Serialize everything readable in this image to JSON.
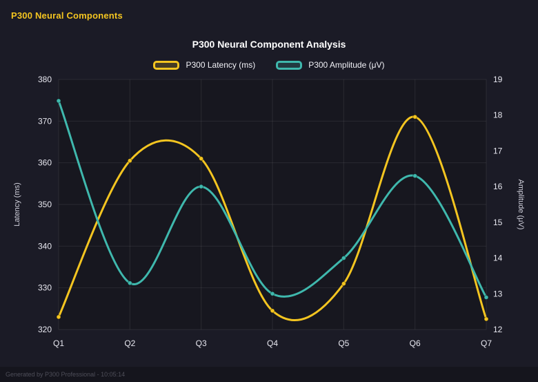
{
  "header": {
    "title": "P300 Neural Components"
  },
  "footer": {
    "text": "Generated by P300 Professional - 10:05:14"
  },
  "chart_data": {
    "type": "line",
    "title": "P300 Neural Component Analysis",
    "categories": [
      "Q1",
      "Q2",
      "Q3",
      "Q4",
      "Q5",
      "Q6",
      "Q7"
    ],
    "series": [
      {
        "name": "P300 Latency (ms)",
        "axis": "left",
        "color": "#f4c520",
        "values": [
          323,
          360.5,
          361,
          324.5,
          331,
          371,
          322.5
        ]
      },
      {
        "name": "P300 Amplitude (μV)",
        "axis": "right",
        "color": "#3fb8ad",
        "values": [
          18.4,
          13.3,
          16.0,
          13.0,
          14.0,
          16.3,
          12.9
        ]
      }
    ],
    "left_axis": {
      "label": "Latency (ms)",
      "min": 320,
      "max": 380,
      "step": 10
    },
    "right_axis": {
      "label": "Amplitude (μV)",
      "min": 12,
      "max": 19,
      "step": 1
    },
    "grid": true,
    "legend_position": "top",
    "curve": "smooth",
    "colors": {
      "page_bg": "#1b1b26",
      "plot_bg": "#17171f",
      "grid": "rgba(255,255,255,0.08)",
      "tick_text": "#e8e8f0",
      "axis_title_text": "#cfcfda",
      "footer_text": "#4e4e59",
      "header_accent": "#f4c520"
    }
  }
}
